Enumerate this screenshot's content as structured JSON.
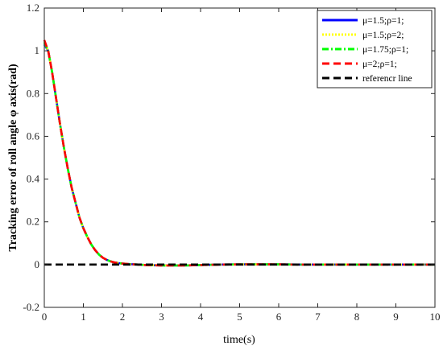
{
  "chart_data": {
    "type": "line",
    "title": "",
    "xlabel": "time(s)",
    "ylabel": "Tracking error of roll angle φ axis(rad)",
    "xlim": [
      0,
      10
    ],
    "ylim": [
      -0.2,
      1.2
    ],
    "x_ticks": [
      "0",
      "1",
      "2",
      "3",
      "4",
      "5",
      "6",
      "7",
      "8",
      "9",
      "10"
    ],
    "y_ticks": [
      "-0.2",
      "0",
      "0.2",
      "0.4",
      "0.6",
      "0.8",
      "1",
      "1.2"
    ],
    "grid": false,
    "legend_position": "top-right",
    "x": [
      0,
      0.1,
      0.2,
      0.3,
      0.4,
      0.5,
      0.6,
      0.7,
      0.8,
      0.9,
      1.0,
      1.1,
      1.2,
      1.3,
      1.4,
      1.5,
      1.6,
      1.7,
      1.8,
      1.9,
      2.0,
      2.2,
      2.4,
      2.6,
      2.8,
      3.0,
      3.3,
      3.6,
      4.0,
      4.5,
      5.0,
      5.5,
      6.0,
      6.5,
      7.0,
      7.5,
      8.0,
      8.5,
      9.0,
      9.5,
      10.0
    ],
    "series": [
      {
        "name": "μ=1.5;ρ=1;",
        "color": "#0000ff",
        "dash": "solid",
        "y": [
          1.03,
          1.0,
          0.9,
          0.78,
          0.66,
          0.55,
          0.45,
          0.36,
          0.29,
          0.22,
          0.17,
          0.13,
          0.095,
          0.068,
          0.047,
          0.032,
          0.022,
          0.015,
          0.01,
          0.007,
          0.005,
          0.002,
          0.0,
          -0.002,
          -0.003,
          -0.004,
          -0.004,
          -0.004,
          -0.002,
          0.0,
          0.001,
          0.001,
          0.001,
          0.0,
          0.0,
          0.0,
          0.0,
          0.0,
          0.0,
          0.0,
          0.0
        ]
      },
      {
        "name": "μ=1.5;ρ=2;",
        "color": "#ffff00",
        "dash": "dotted",
        "y": [
          1.04,
          1.0,
          0.9,
          0.78,
          0.66,
          0.55,
          0.45,
          0.36,
          0.29,
          0.22,
          0.17,
          0.13,
          0.095,
          0.068,
          0.047,
          0.032,
          0.022,
          0.015,
          0.01,
          0.007,
          0.005,
          0.002,
          0.0,
          -0.002,
          -0.003,
          -0.004,
          -0.004,
          -0.004,
          -0.002,
          0.0,
          0.001,
          0.001,
          0.001,
          0.0,
          0.0,
          0.0,
          0.0,
          0.0,
          0.0,
          0.0,
          0.0
        ]
      },
      {
        "name": "μ=1.75;ρ=1;",
        "color": "#00ff00",
        "dash": "dashdot",
        "y": [
          1.04,
          1.0,
          0.9,
          0.78,
          0.66,
          0.55,
          0.45,
          0.36,
          0.29,
          0.22,
          0.17,
          0.13,
          0.095,
          0.068,
          0.047,
          0.032,
          0.022,
          0.015,
          0.01,
          0.007,
          0.005,
          0.002,
          0.0,
          -0.002,
          -0.003,
          -0.004,
          -0.004,
          -0.004,
          -0.002,
          0.0,
          0.001,
          0.001,
          0.001,
          0.0,
          0.0,
          0.0,
          0.0,
          0.0,
          0.0,
          0.0,
          0.0
        ]
      },
      {
        "name": "μ=2;ρ=1;",
        "color": "#ff0000",
        "dash": "dashed",
        "y": [
          1.05,
          1.0,
          0.9,
          0.78,
          0.66,
          0.55,
          0.45,
          0.36,
          0.29,
          0.22,
          0.17,
          0.13,
          0.095,
          0.068,
          0.047,
          0.032,
          0.022,
          0.015,
          0.01,
          0.007,
          0.005,
          0.002,
          0.0,
          -0.002,
          -0.003,
          -0.004,
          -0.004,
          -0.004,
          -0.002,
          0.0,
          0.001,
          0.001,
          0.001,
          0.0,
          0.0,
          0.0,
          0.0,
          0.0,
          0.0,
          0.0,
          0.0
        ]
      },
      {
        "name": "referencr line",
        "color": "#000000",
        "dash": "dashed",
        "y": [
          0,
          0,
          0,
          0,
          0,
          0,
          0,
          0,
          0,
          0,
          0,
          0,
          0,
          0,
          0,
          0,
          0,
          0,
          0,
          0,
          0,
          0,
          0,
          0,
          0,
          0,
          0,
          0,
          0,
          0,
          0,
          0,
          0,
          0,
          0,
          0,
          0,
          0,
          0,
          0,
          0
        ]
      }
    ]
  }
}
